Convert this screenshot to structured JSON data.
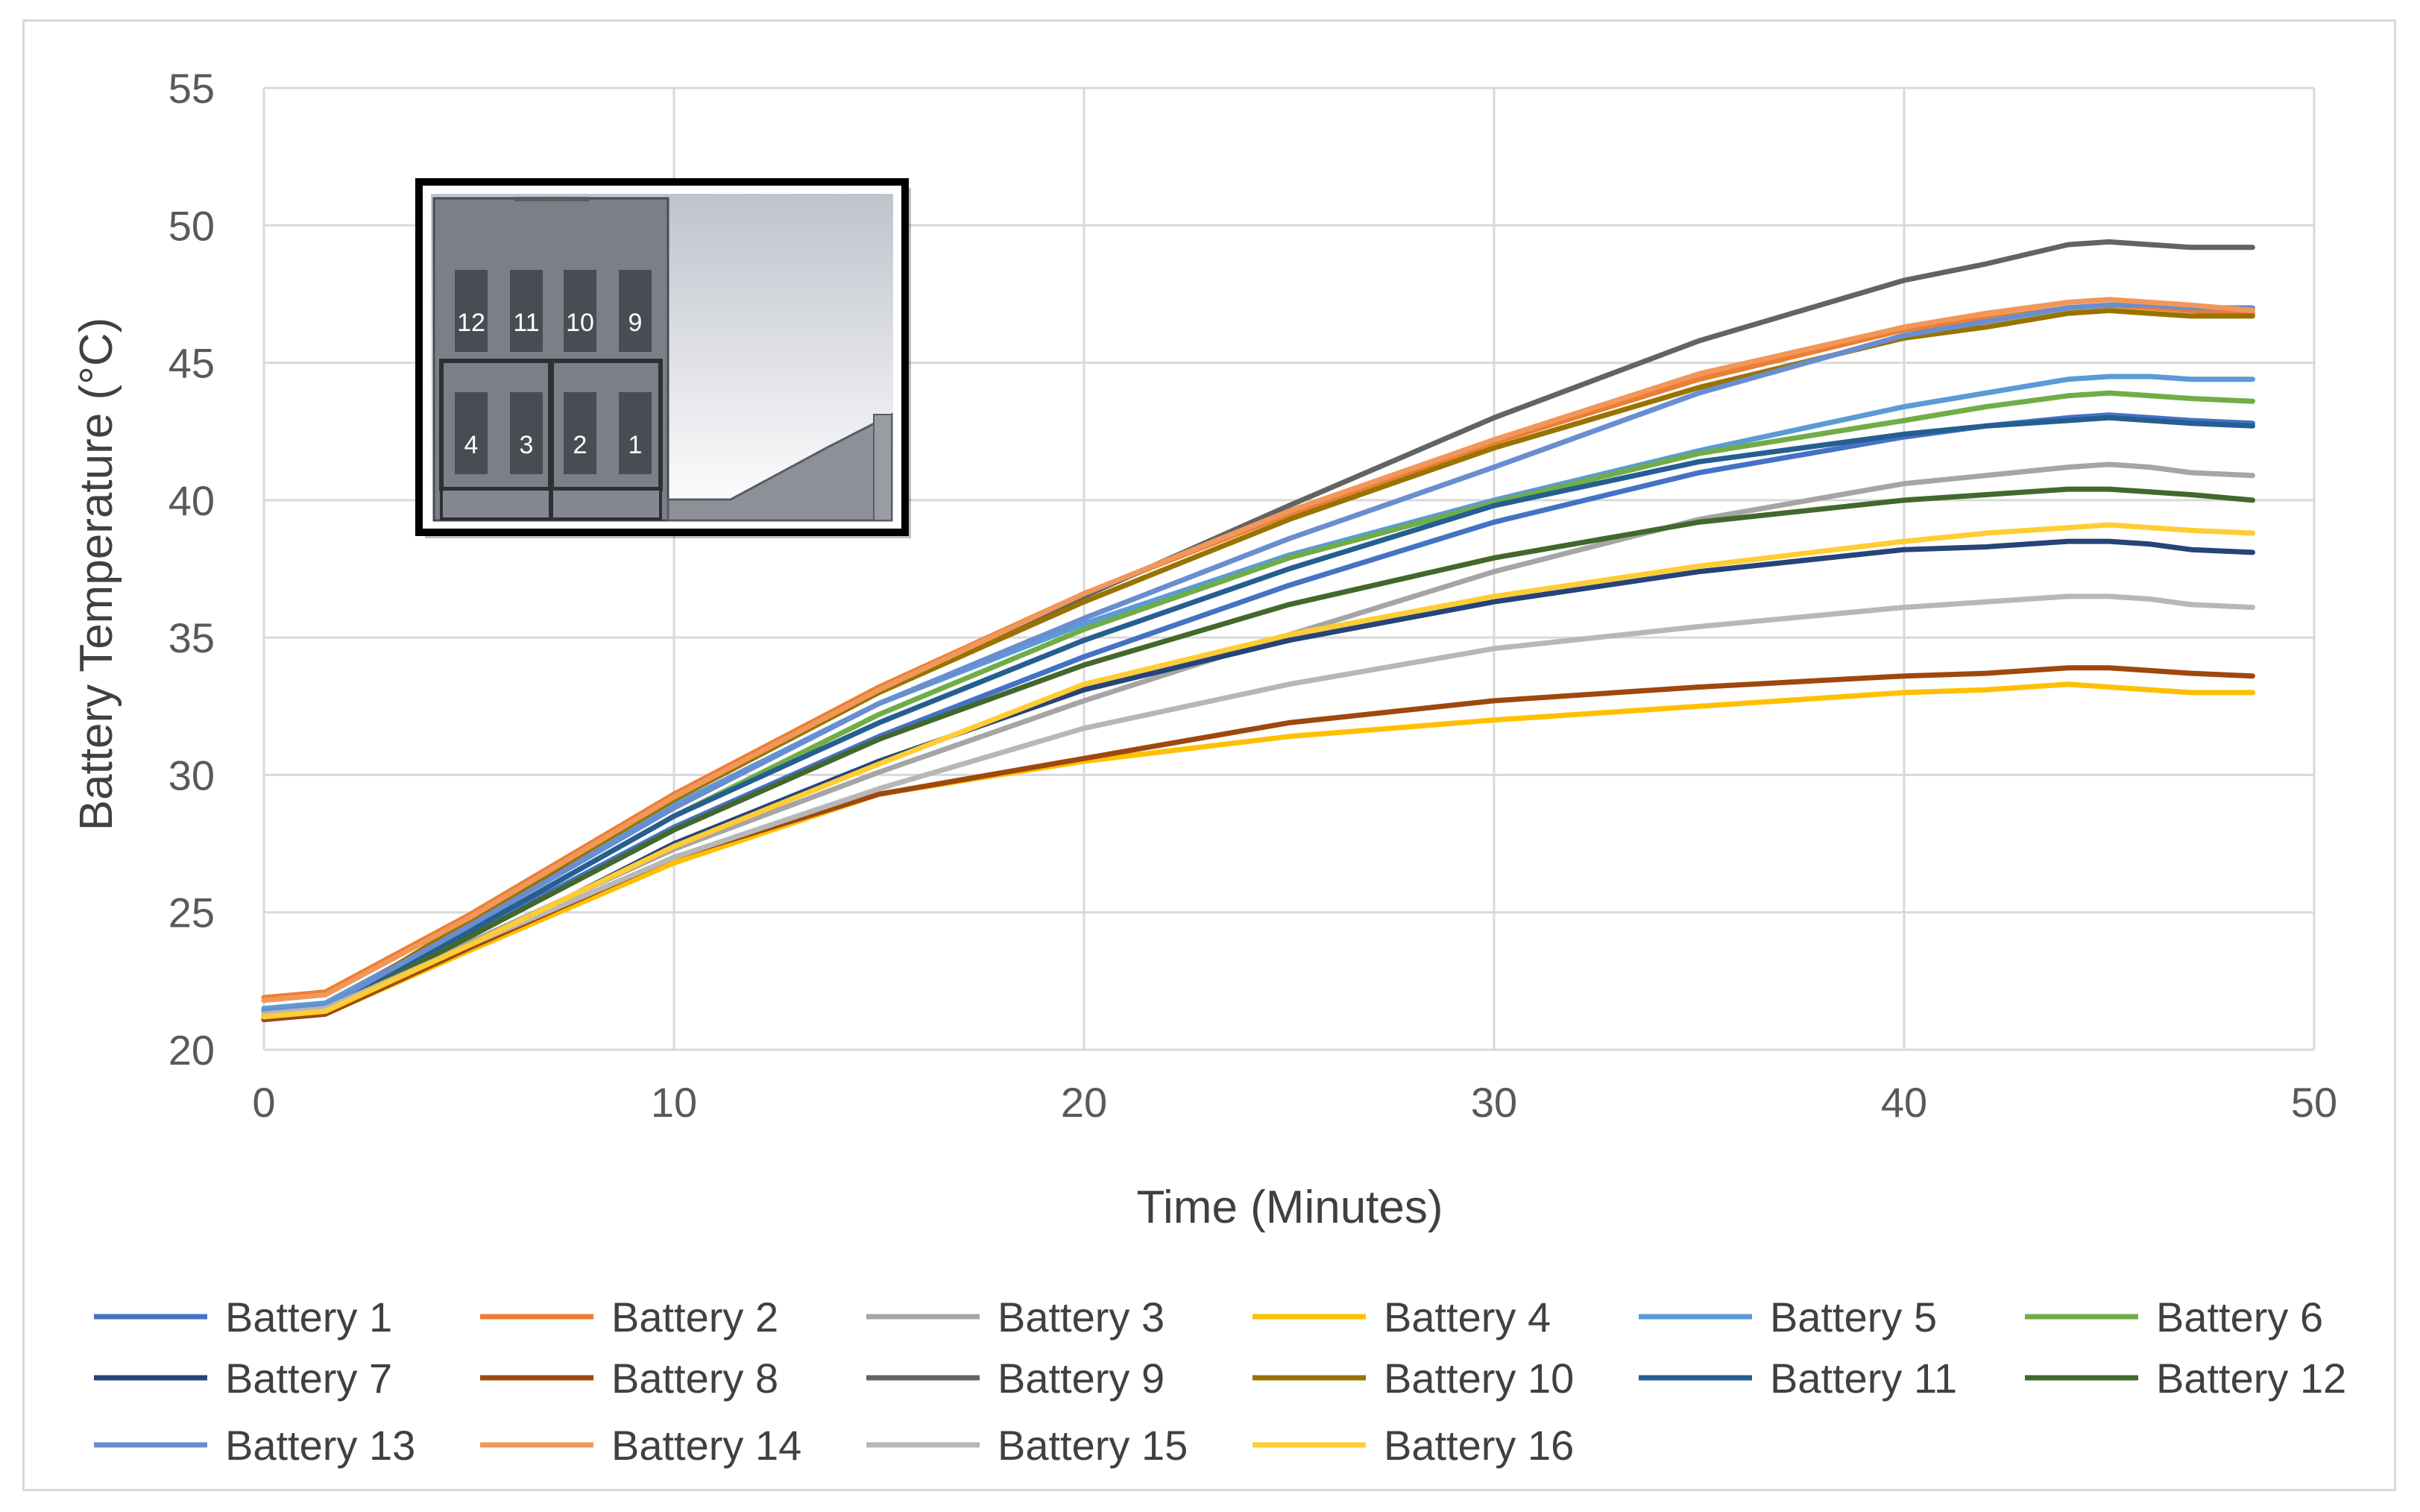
{
  "chart_data": {
    "type": "line",
    "title": "",
    "xlabel": "Time (Minutes)",
    "ylabel": "Battery Temperature (°C)",
    "xlim": [
      0,
      50
    ],
    "ylim": [
      20,
      55
    ],
    "x_ticks": [
      "0",
      "10",
      "20",
      "30",
      "40",
      "50"
    ],
    "y_ticks": [
      "20",
      "25",
      "30",
      "35",
      "40",
      "45",
      "50",
      "55"
    ],
    "grid": true,
    "legend_position": "bottom",
    "x": [
      0,
      1.5,
      5,
      10,
      15,
      20,
      25,
      30,
      35,
      40,
      42,
      44,
      45,
      46,
      47,
      48.5
    ],
    "series": [
      {
        "name": "Battery 1",
        "color": "#4472C4",
        "values": [
          21.2,
          21.4,
          24.2,
          28.1,
          31.4,
          34.3,
          36.9,
          39.2,
          41.0,
          42.3,
          42.7,
          43.0,
          43.1,
          43.0,
          42.9,
          42.8
        ]
      },
      {
        "name": "Battery 2",
        "color": "#ED7D31",
        "values": [
          21.9,
          22.1,
          24.9,
          29.3,
          33.2,
          36.6,
          39.5,
          42.1,
          44.4,
          46.2,
          46.6,
          47.0,
          47.1,
          47.0,
          46.9,
          46.8
        ]
      },
      {
        "name": "Battery 3",
        "color": "#A5A5A5",
        "values": [
          21.3,
          21.5,
          23.9,
          27.3,
          30.1,
          32.7,
          35.1,
          37.4,
          39.3,
          40.6,
          40.9,
          41.2,
          41.3,
          41.2,
          41.0,
          40.9
        ]
      },
      {
        "name": "Battery 4",
        "color": "#FFC000",
        "values": [
          21.1,
          21.3,
          23.6,
          26.8,
          29.3,
          30.5,
          31.4,
          32.0,
          32.5,
          33.0,
          33.1,
          33.3,
          33.2,
          33.1,
          33.0,
          33.0
        ]
      },
      {
        "name": "Battery 5",
        "color": "#5B9BD5",
        "values": [
          21.5,
          21.7,
          24.5,
          28.9,
          32.6,
          35.5,
          38.0,
          40.0,
          41.8,
          43.4,
          43.9,
          44.4,
          44.5,
          44.5,
          44.4,
          44.4
        ]
      },
      {
        "name": "Battery 6",
        "color": "#70AD47",
        "values": [
          21.4,
          21.6,
          24.3,
          28.5,
          32.2,
          35.3,
          37.9,
          39.9,
          41.7,
          42.9,
          43.4,
          43.8,
          43.9,
          43.8,
          43.7,
          43.6
        ]
      },
      {
        "name": "Battery 7",
        "color": "#264478",
        "values": [
          21.1,
          21.3,
          23.7,
          27.5,
          30.5,
          33.1,
          34.9,
          36.3,
          37.4,
          38.2,
          38.3,
          38.5,
          38.5,
          38.4,
          38.2,
          38.1
        ]
      },
      {
        "name": "Battery 8",
        "color": "#9E480E",
        "values": [
          21.1,
          21.3,
          23.7,
          27.0,
          29.3,
          30.6,
          31.9,
          32.7,
          33.2,
          33.6,
          33.7,
          33.9,
          33.9,
          33.8,
          33.7,
          33.6
        ]
      },
      {
        "name": "Battery 9",
        "color": "#636363",
        "values": [
          21.2,
          21.4,
          24.6,
          29.2,
          33.1,
          36.5,
          39.8,
          43.0,
          45.8,
          48.0,
          48.6,
          49.3,
          49.4,
          49.3,
          49.2,
          49.2
        ]
      },
      {
        "name": "Battery 10",
        "color": "#997300",
        "values": [
          21.3,
          21.5,
          24.7,
          29.1,
          33.0,
          36.3,
          39.3,
          41.9,
          44.1,
          45.9,
          46.3,
          46.8,
          46.9,
          46.8,
          46.7,
          46.7
        ]
      },
      {
        "name": "Battery 11",
        "color": "#255E91",
        "values": [
          21.2,
          21.4,
          24.3,
          28.5,
          31.9,
          34.9,
          37.5,
          39.8,
          41.4,
          42.4,
          42.7,
          42.9,
          43.0,
          42.9,
          42.8,
          42.7
        ]
      },
      {
        "name": "Battery 12",
        "color": "#43682B",
        "values": [
          21.2,
          21.4,
          24.1,
          28.0,
          31.3,
          34.0,
          36.2,
          37.9,
          39.2,
          40.0,
          40.2,
          40.4,
          40.4,
          40.3,
          40.2,
          40.0
        ]
      },
      {
        "name": "Battery 13",
        "color": "#698ED0",
        "values": [
          21.4,
          21.6,
          24.5,
          28.8,
          32.6,
          35.7,
          38.6,
          41.2,
          43.9,
          46.0,
          46.5,
          47.0,
          47.1,
          47.1,
          47.0,
          47.0
        ]
      },
      {
        "name": "Battery 14",
        "color": "#F1975A",
        "values": [
          21.8,
          22.0,
          24.8,
          29.2,
          33.1,
          36.6,
          39.6,
          42.2,
          44.6,
          46.3,
          46.8,
          47.2,
          47.3,
          47.2,
          47.1,
          46.9
        ]
      },
      {
        "name": "Battery 15",
        "color": "#B7B7B7",
        "values": [
          21.3,
          21.5,
          23.8,
          27.0,
          29.5,
          31.7,
          33.3,
          34.6,
          35.4,
          36.1,
          36.3,
          36.5,
          36.5,
          36.4,
          36.2,
          36.1
        ]
      },
      {
        "name": "Battery 16",
        "color": "#FFCD33",
        "values": [
          21.2,
          21.4,
          23.8,
          27.4,
          30.4,
          33.3,
          35.1,
          36.5,
          37.6,
          38.5,
          38.8,
          39.0,
          39.1,
          39.0,
          38.9,
          38.8
        ]
      }
    ]
  },
  "inset": {
    "upper_labels": [
      "12",
      "11",
      "10",
      "9"
    ],
    "lower_labels": [
      "4",
      "3",
      "2",
      "1"
    ]
  }
}
